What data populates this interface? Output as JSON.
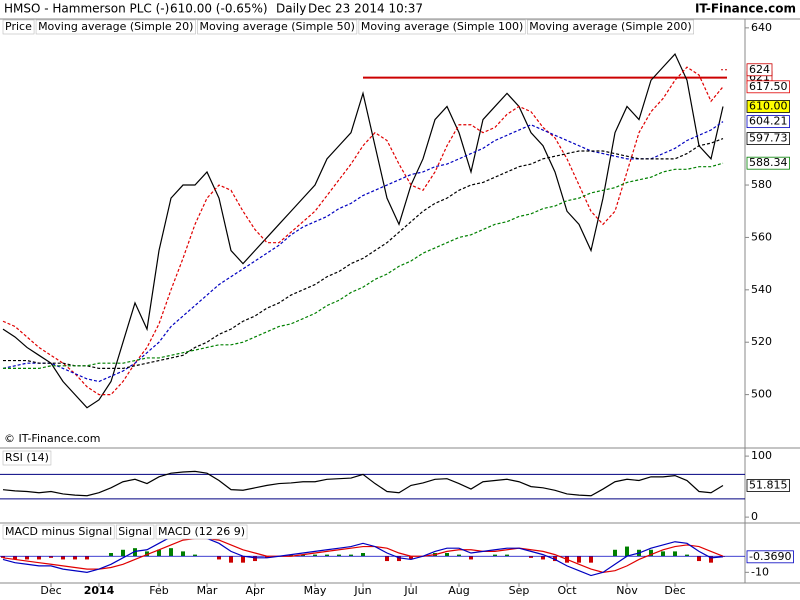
{
  "chart_data": {
    "type": "line",
    "title": "HMSO - Hammerson PLC (-)",
    "last": "610.00 (-0.65%)",
    "interval": "Daily",
    "timestamp": "Dec 23 2014 10:37",
    "brand": "IT-Finance.com",
    "watermark": "© IT-Finance.com",
    "categories": [
      null,
      null,
      null,
      null,
      "Dec",
      null,
      null,
      null,
      "2014",
      null,
      null,
      null,
      null,
      "Feb",
      null,
      null,
      null,
      "Mar",
      null,
      null,
      null,
      "Apr",
      null,
      null,
      null,
      null,
      "May",
      null,
      null,
      null,
      "Jun",
      null,
      null,
      null,
      "Jul",
      null,
      null,
      null,
      "Aug",
      null,
      null,
      null,
      null,
      "Sep",
      null,
      null,
      null,
      "Oct",
      null,
      null,
      null,
      null,
      "Nov",
      null,
      null,
      null,
      "Dec",
      null,
      null,
      null,
      null
    ],
    "panels": [
      {
        "ylim": [
          480,
          643
        ],
        "yticks": [
          500,
          520,
          540,
          560,
          580,
          640
        ],
        "resistance": {
          "value": 621,
          "label": "621",
          "from": "Jun",
          "color": "#cc0000"
        },
        "high": {
          "value": 624,
          "label": "624",
          "color": "#cc0000"
        },
        "series": [
          {
            "name": "Price",
            "color": "#000000",
            "badge": "#ffff00",
            "last_label": "610.00",
            "values": [
              525,
              522,
              518,
              515,
              512,
              505,
              500,
              495,
              498,
              505,
              520,
              535,
              525,
              555,
              575,
              580,
              580,
              585,
              575,
              555,
              550,
              555,
              560,
              565,
              570,
              575,
              580,
              590,
              595,
              600,
              615,
              595,
              575,
              565,
              580,
              590,
              605,
              610,
              600,
              585,
              605,
              610,
              615,
              610,
              600,
              595,
              585,
              570,
              565,
              555,
              575,
              600,
              610,
              605,
              620,
              625,
              630,
              620,
              595,
              590,
              610
            ]
          },
          {
            "name": "Moving average (Simple 20)",
            "color": "#e00000",
            "dash": true,
            "last_label": "617.50",
            "values": [
              528,
              526,
              522,
              518,
              515,
              512,
              508,
              503,
              500,
              500,
              505,
              512,
              518,
              527,
              540,
              552,
              565,
              575,
              580,
              578,
              570,
              563,
              558,
              558,
              562,
              566,
              570,
              576,
              582,
              588,
              595,
              600,
              597,
              588,
              580,
              578,
              585,
              595,
              603,
              603,
              600,
              602,
              607,
              610,
              608,
              602,
              598,
              590,
              580,
              570,
              565,
              570,
              585,
              600,
              608,
              613,
              620,
              625,
              622,
              612,
              617.5
            ]
          },
          {
            "name": "Moving average (Simple 50)",
            "color": "#0000c0",
            "dash": true,
            "last_label": "604.21",
            "values": [
              510,
              511,
              512,
              512,
              512,
              510,
              508,
              506,
              505,
              507,
              509,
              512,
              516,
              520,
              526,
              530,
              534,
              538,
              542,
              545,
              548,
              551,
              554,
              557,
              561,
              564,
              566,
              568,
              571,
              573,
              576,
              578,
              580,
              582,
              584,
              585,
              587,
              588,
              590,
              592,
              594,
              597,
              599,
              601,
              603,
              601,
              599,
              597,
              595,
              593,
              592,
              591,
              590,
              590,
              590,
              592,
              594,
              597,
              599,
              601,
              604.21
            ]
          },
          {
            "name": "Moving average (Simple 100)",
            "color": "#000000",
            "dash": true,
            "last_label": "597.73",
            "values": [
              513,
              513,
              513,
              512,
              512,
              512,
              511,
              511,
              510,
              510,
              510,
              511,
              512,
              513,
              514,
              515,
              518,
              520,
              523,
              525,
              528,
              530,
              533,
              535,
              538,
              540,
              542,
              545,
              547,
              550,
              552,
              555,
              558,
              562,
              566,
              570,
              573,
              575,
              578,
              580,
              581,
              583,
              585,
              587,
              588,
              590,
              591,
              592,
              593,
              593,
              593,
              592,
              591,
              590,
              590,
              590,
              590,
              592,
              595,
              596,
              597.73
            ]
          },
          {
            "name": "Moving average (Simple 200)",
            "color": "#008000",
            "dash": true,
            "last_label": "588.34",
            "values": [
              510,
              510,
              510,
              510,
              511,
              511,
              511,
              511,
              512,
              512,
              512,
              513,
              514,
              514,
              515,
              516,
              517,
              518,
              519,
              519,
              520,
              522,
              524,
              526,
              527,
              529,
              531,
              534,
              536,
              539,
              541,
              544,
              546,
              549,
              551,
              554,
              556,
              558,
              560,
              561,
              563,
              565,
              566,
              568,
              569,
              571,
              572,
              574,
              575,
              577,
              578,
              579,
              581,
              582,
              583,
              585,
              586,
              586,
              587,
              587,
              588.34
            ]
          }
        ]
      },
      {
        "ylim": [
          -8,
          110
        ],
        "yticks": [
          0,
          100
        ],
        "levels": [
          30,
          70
        ],
        "level_color": "#000080",
        "series": [
          {
            "name": "RSI (14)",
            "color": "#000000",
            "last_label": "51.815",
            "values": [
              45,
              43,
              42,
              40,
              42,
              38,
              36,
              35,
              40,
              48,
              58,
              62,
              55,
              66,
              72,
              74,
              75,
              72,
              60,
              45,
              44,
              48,
              52,
              55,
              56,
              58,
              58,
              62,
              63,
              64,
              70,
              55,
              42,
              40,
              52,
              56,
              62,
              63,
              55,
              46,
              58,
              60,
              62,
              58,
              50,
              48,
              44,
              38,
              36,
              35,
              46,
              58,
              62,
              60,
              66,
              66,
              68,
              60,
              42,
              40,
              51.815
            ]
          }
        ]
      },
      {
        "ylim": [
          -16,
          20
        ],
        "yticks": [
          -10
        ],
        "series": [
          {
            "name": "MACD minus Signal",
            "type": "bar",
            "color": "#008000",
            "negative_color": "#cc0000",
            "values": [
              -1,
              -2,
              -2,
              -2,
              -1,
              -2,
              -2,
              -2,
              0,
              2,
              4,
              5,
              3,
              4,
              5,
              3,
              1,
              0,
              -2,
              -4,
              -4,
              -3,
              -1,
              0,
              1,
              1,
              1,
              1,
              1,
              1,
              2,
              0,
              -3,
              -3,
              -2,
              0,
              2,
              2,
              1,
              -2,
              0,
              1,
              1,
              0,
              -1,
              -2,
              -3,
              -4,
              -4,
              -4,
              0,
              4,
              6,
              4,
              4,
              3,
              3,
              1,
              -3,
              -4,
              -0.369
            ]
          },
          {
            "name": "Signal",
            "color": "#e00000",
            "values": [
              -1,
              -2,
              -3,
              -4,
              -5,
              -6,
              -7,
              -8,
              -8,
              -7,
              -5,
              -2,
              1,
              4,
              7,
              10,
              11,
              11,
              10,
              7,
              4,
              2,
              0,
              0,
              0,
              1,
              2,
              3,
              4,
              5,
              6,
              6,
              5,
              2,
              0,
              0,
              1,
              3,
              4,
              4,
              3,
              3,
              4,
              5,
              4,
              3,
              1,
              -2,
              -5,
              -8,
              -10,
              -9,
              -6,
              -2,
              1,
              4,
              6,
              7,
              6,
              3,
              0
            ]
          },
          {
            "name": "MACD (12 26 9)",
            "color": "#0000c0",
            "last_label": "-0.3690",
            "values": [
              -2,
              -4,
              -5,
              -6,
              -6,
              -8,
              -9,
              -10,
              -8,
              -5,
              -1,
              3,
              4,
              8,
              12,
              13,
              12,
              11,
              8,
              3,
              0,
              -1,
              -1,
              0,
              1,
              2,
              3,
              4,
              5,
              6,
              8,
              6,
              2,
              -1,
              -2,
              0,
              3,
              5,
              5,
              2,
              3,
              4,
              5,
              5,
              3,
              1,
              -2,
              -6,
              -9,
              -12,
              -10,
              -5,
              0,
              2,
              5,
              7,
              9,
              8,
              3,
              -1,
              -0.369
            ]
          }
        ]
      }
    ]
  }
}
